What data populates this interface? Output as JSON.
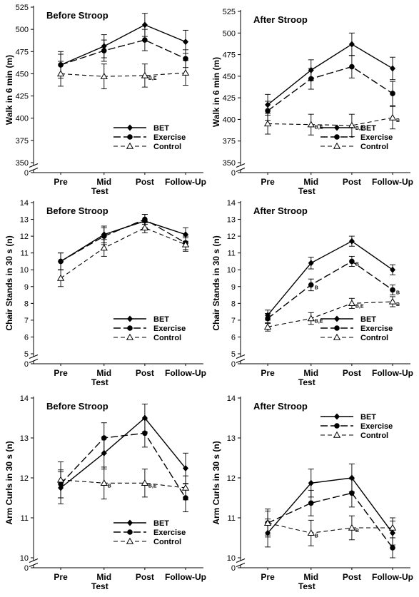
{
  "chart_data": [
    {
      "type": "line",
      "title": "Before Stroop",
      "xlabel": "Test",
      "ylabel": "Walk in 6 min (m)",
      "categories": [
        "Pre",
        "Mid",
        "Post",
        "Follow-Up"
      ],
      "ylim": [
        350,
        525
      ],
      "yticks": [
        0,
        350,
        375,
        400,
        425,
        450,
        475,
        500,
        525
      ],
      "axis_break": true,
      "legend_position": "bottom-right",
      "series": [
        {
          "name": "BET",
          "marker": "diamond",
          "line": "solid",
          "values": [
            460,
            481,
            505,
            486
          ],
          "errors": [
            15,
            13,
            13,
            13
          ]
        },
        {
          "name": "Exercise",
          "marker": "circle",
          "line": "long-dash",
          "values": [
            460,
            476,
            488,
            467
          ],
          "errors": [
            12,
            12,
            12,
            10
          ]
        },
        {
          "name": "Control",
          "marker": "triangle-open",
          "line": "short-dash",
          "values": [
            450,
            447,
            448,
            451
          ],
          "errors": [
            14,
            14,
            13,
            14
          ]
        }
      ],
      "annotations": [
        {
          "category": "Post",
          "series": "Control",
          "text": "B,E"
        }
      ]
    },
    {
      "type": "line",
      "title": "After Stroop",
      "xlabel": "Test",
      "ylabel": "Walk in 6 min (m)",
      "categories": [
        "Pre",
        "Mid",
        "Post",
        "Follow-Up"
      ],
      "ylim": [
        350,
        525
      ],
      "yticks": [
        0,
        350,
        375,
        400,
        425,
        450,
        475,
        500,
        525
      ],
      "axis_break": true,
      "legend_position": "bottom-right",
      "series": [
        {
          "name": "BET",
          "marker": "diamond",
          "line": "solid",
          "values": [
            417,
            457,
            487,
            459
          ],
          "errors": [
            12,
            12,
            13,
            13
          ]
        },
        {
          "name": "Exercise",
          "marker": "circle",
          "line": "long-dash",
          "values": [
            410,
            447,
            461,
            430
          ],
          "errors": [
            11,
            12,
            13,
            14
          ]
        },
        {
          "name": "Control",
          "marker": "triangle-open",
          "line": "short-dash",
          "values": [
            395,
            394,
            393,
            402
          ],
          "errors": [
            12,
            12,
            13,
            13
          ]
        }
      ],
      "annotations": [
        {
          "category": "Mid",
          "series": "Control",
          "text": "B,E"
        },
        {
          "category": "Post",
          "series": "Control",
          "text": "B,E"
        },
        {
          "category": "Follow-Up",
          "series": "Control",
          "text": "B"
        }
      ]
    },
    {
      "type": "line",
      "title": "Before Stroop",
      "xlabel": "Test",
      "ylabel": "Chair Stands in 30 s (n)",
      "categories": [
        "Pre",
        "Mid",
        "Post",
        "Follow-Up"
      ],
      "ylim": [
        5,
        14
      ],
      "yticks": [
        0,
        5,
        6,
        7,
        8,
        9,
        10,
        11,
        12,
        13,
        14
      ],
      "axis_break": true,
      "legend_position": "bottom-right",
      "series": [
        {
          "name": "BET",
          "marker": "diamond",
          "line": "solid",
          "values": [
            10.5,
            12.1,
            12.9,
            12.1
          ],
          "errors": [
            0.5,
            0.5,
            0.4,
            0.4
          ]
        },
        {
          "name": "Exercise",
          "marker": "circle",
          "line": "long-dash",
          "values": [
            10.5,
            12.0,
            13.0,
            11.6
          ],
          "errors": [
            0.5,
            0.5,
            0.3,
            0.4
          ]
        },
        {
          "name": "Control",
          "marker": "triangle-open",
          "line": "short-dash",
          "values": [
            9.5,
            11.3,
            12.5,
            11.5
          ],
          "errors": [
            0.5,
            0.5,
            0.3,
            0.4
          ]
        }
      ],
      "annotations": []
    },
    {
      "type": "line",
      "title": "After Stroop",
      "xlabel": "Test",
      "ylabel": "Chair Stands in 30 s (n)",
      "categories": [
        "Pre",
        "Mid",
        "Post",
        "Follow-Up"
      ],
      "ylim": [
        5,
        14
      ],
      "yticks": [
        0,
        5,
        6,
        7,
        8,
        9,
        10,
        11,
        12,
        13,
        14
      ],
      "axis_break": true,
      "legend_position": "bottom-right",
      "series": [
        {
          "name": "BET",
          "marker": "diamond",
          "line": "solid",
          "values": [
            7.3,
            10.4,
            11.7,
            10.0
          ],
          "errors": [
            0.3,
            0.35,
            0.3,
            0.3
          ]
        },
        {
          "name": "Exercise",
          "marker": "circle",
          "line": "long-dash",
          "values": [
            7.1,
            9.1,
            10.5,
            8.8
          ],
          "errors": [
            0.3,
            0.35,
            0.3,
            0.3
          ]
        },
        {
          "name": "Control",
          "marker": "triangle-open",
          "line": "short-dash",
          "values": [
            6.6,
            7.1,
            8.0,
            8.1
          ],
          "errors": [
            0.25,
            0.35,
            0.3,
            0.3
          ]
        }
      ],
      "annotations": [
        {
          "category": "Mid",
          "series": "Exercise",
          "text": "B"
        },
        {
          "category": "Mid",
          "series": "Control",
          "text": "B,E"
        },
        {
          "category": "Post",
          "series": "Exercise",
          "text": "B"
        },
        {
          "category": "Post",
          "series": "Control",
          "text": "B,E"
        },
        {
          "category": "Follow-Up",
          "series": "Exercise",
          "text": "B"
        },
        {
          "category": "Follow-Up",
          "series": "Control",
          "text": "B"
        }
      ]
    },
    {
      "type": "line",
      "title": "Before Stroop",
      "xlabel": "Test",
      "ylabel": "Arm Curls in 30 s (n)",
      "categories": [
        "Pre",
        "Mid",
        "Post",
        "Follow-Up"
      ],
      "ylim": [
        10,
        14
      ],
      "yticks": [
        0,
        10,
        11,
        12,
        13,
        14
      ],
      "axis_break": true,
      "legend_position": "bottom-right",
      "series": [
        {
          "name": "BET",
          "marker": "diamond",
          "line": "solid",
          "values": [
            11.75,
            12.62,
            13.5,
            12.24
          ],
          "errors": [
            0.4,
            0.4,
            0.35,
            0.38
          ]
        },
        {
          "name": "Exercise",
          "marker": "circle",
          "line": "long-dash",
          "values": [
            11.85,
            13.0,
            13.12,
            11.5
          ],
          "errors": [
            0.35,
            0.38,
            0.35,
            0.35
          ]
        },
        {
          "name": "Control",
          "marker": "triangle-open",
          "line": "short-dash",
          "values": [
            11.95,
            11.87,
            11.87,
            11.75
          ],
          "errors": [
            0.45,
            0.4,
            0.35,
            0.3
          ]
        }
      ],
      "annotations": [
        {
          "category": "Mid",
          "series": "Control",
          "text": "B"
        },
        {
          "category": "Post",
          "series": "Control",
          "text": "B,E"
        }
      ]
    },
    {
      "type": "line",
      "title": "After Stroop",
      "xlabel": "Test",
      "ylabel": "Arm Curls in 30 s (n)",
      "categories": [
        "Pre",
        "Mid",
        "Post",
        "Follow-Up"
      ],
      "ylim": [
        10,
        14
      ],
      "yticks": [
        0,
        10,
        11,
        12,
        13,
        14
      ],
      "axis_break": true,
      "legend_position": "top-right",
      "series": [
        {
          "name": "BET",
          "marker": "diamond",
          "line": "solid",
          "values": [
            10.62,
            11.87,
            12.0,
            10.62
          ],
          "errors": [
            0.35,
            0.35,
            0.35,
            0.3
          ]
        },
        {
          "name": "Exercise",
          "marker": "circle",
          "line": "long-dash",
          "values": [
            10.87,
            11.37,
            11.62,
            10.25
          ],
          "errors": [
            0.3,
            0.32,
            0.35,
            0.25
          ]
        },
        {
          "name": "Control",
          "marker": "triangle-open",
          "line": "short-dash",
          "values": [
            10.87,
            10.62,
            10.75,
            10.75
          ],
          "errors": [
            0.35,
            0.32,
            0.3,
            0.25
          ]
        }
      ],
      "annotations": [
        {
          "category": "Mid",
          "series": "Control",
          "text": "B"
        },
        {
          "category": "Post",
          "series": "Control",
          "text": "B"
        }
      ]
    }
  ]
}
